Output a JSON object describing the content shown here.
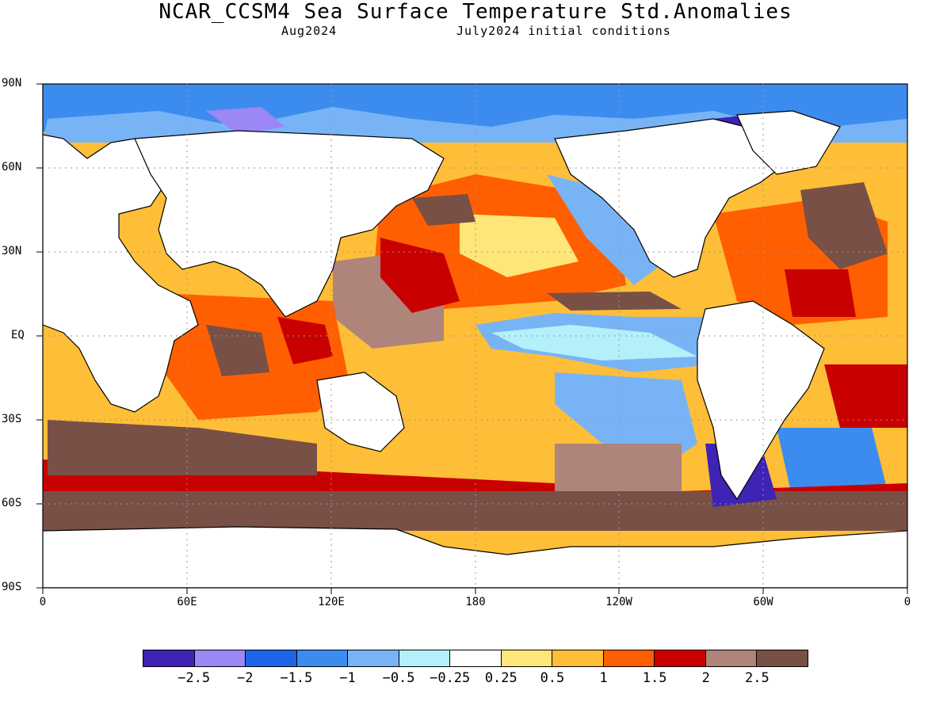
{
  "title": "NCAR_CCSM4 Sea Surface Temperature Std.Anomalies",
  "subtitle_left": "Aug2024",
  "subtitle_right": "July2024 initial conditions",
  "lat_labels": [
    "90N",
    "60N",
    "30N",
    "EQ",
    "30S",
    "60S",
    "90S"
  ],
  "lon_labels": [
    "0",
    "60E",
    "120E",
    "180",
    "120W",
    "60W",
    "0"
  ],
  "colorbar": {
    "colors": [
      "#3e23b4",
      "#9b87f5",
      "#1e64e6",
      "#3c8cf0",
      "#78b4f5",
      "#b4f0fa",
      "#ffffff",
      "#ffe678",
      "#ffbe37",
      "#ff5f00",
      "#c80000",
      "#af847a",
      "#785046"
    ],
    "labels": [
      "-2.5",
      "-2",
      "-1.5",
      "-1",
      "-0.5",
      "-0.25",
      "0.25",
      "0.5",
      "1",
      "1.5",
      "2",
      "2.5"
    ]
  },
  "map_colors": {
    "arctic": "#3c8cf0",
    "land": "#ffffff",
    "warm": "#ff5f00",
    "very_warm": "#c80000",
    "extreme": "#785046",
    "high": "#af847a",
    "mild": "#ffbe37",
    "slight": "#ffe678",
    "cool": "#78b4f5",
    "cooler": "#b4f0fa",
    "cold": "#1e64e6",
    "very_cold": "#9b87f5"
  }
}
